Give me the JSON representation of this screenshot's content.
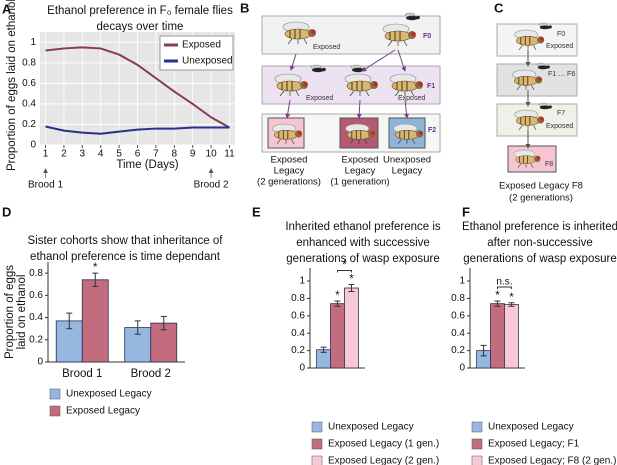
{
  "chart_data": [
    {
      "type": "line",
      "panel": "A",
      "title": [
        "Ethanol preference in F₀ female flies",
        "decays over time"
      ],
      "xlabel": "Time (Days)",
      "ylabel": [
        "Proportion of eggs laid on ethanol"
      ],
      "x": [
        1,
        2,
        3,
        4,
        5,
        6,
        7,
        8,
        9,
        10,
        11
      ],
      "series": [
        {
          "name": "Exposed",
          "color": "#8b3a55",
          "values": [
            0.92,
            0.94,
            0.95,
            0.94,
            0.88,
            0.78,
            0.65,
            0.52,
            0.4,
            0.27,
            0.17
          ]
        },
        {
          "name": "Unexposed",
          "color": "#2a2f8c",
          "values": [
            0.18,
            0.14,
            0.12,
            0.11,
            0.13,
            0.15,
            0.16,
            0.16,
            0.17,
            0.17,
            0.17
          ]
        }
      ],
      "xlim": [
        0.7,
        11.3
      ],
      "xticks": [
        1,
        2,
        3,
        4,
        5,
        6,
        7,
        8,
        9,
        10,
        11
      ],
      "ylim": [
        0,
        1.1
      ],
      "yticks": [
        0,
        0.2,
        0.4,
        0.6,
        0.8,
        1
      ],
      "grid": true,
      "legend": "upper right",
      "annotations": [
        {
          "text": "Brood 1",
          "x": 1
        },
        {
          "text": "Brood 2",
          "x": 10
        }
      ]
    },
    {
      "type": "bar",
      "panel": "D",
      "title": [
        "Sister cohorts show that inheritance of",
        "ethanol preference is time dependant"
      ],
      "ylabel": [
        "Proportion of eggs",
        "laid on ethanol"
      ],
      "categories": [
        "Brood 1",
        "Brood 2"
      ],
      "series": [
        {
          "name": "Unexposed Legacy",
          "color": "#95b7e0",
          "values": [
            0.37,
            0.31
          ],
          "errors": [
            0.07,
            0.06
          ],
          "significance": [
            null,
            null
          ]
        },
        {
          "name": "Exposed Legacy",
          "color": "#c26c7e",
          "values": [
            0.74,
            0.35
          ],
          "errors": [
            0.06,
            0.06
          ],
          "significance": [
            "*",
            null
          ]
        }
      ],
      "ylim": [
        0,
        0.9
      ],
      "yticks": [
        0,
        0.2,
        0.4,
        0.6,
        0.8
      ]
    },
    {
      "type": "bar",
      "panel": "E",
      "title": [
        "Inherited ethanol preference is",
        "enhanced with successive",
        "generations of wasp exposure"
      ],
      "categories": [
        null
      ],
      "series": [
        {
          "name": "Unexposed Legacy",
          "color": "#95b7e0",
          "values": [
            0.21
          ],
          "errors": [
            0.03
          ],
          "significance": [
            null
          ]
        },
        {
          "name": "Exposed Legacy (1 gen.)",
          "color": "#c26c7e",
          "values": [
            0.74
          ],
          "errors": [
            0.03
          ],
          "significance": [
            "*"
          ]
        },
        {
          "name": "Exposed Legacy (2 gen.)",
          "color": "#f8c8d3",
          "values": [
            0.92
          ],
          "errors": [
            0.04
          ],
          "significance": [
            "*"
          ]
        }
      ],
      "comparison_label": "*",
      "ylim": [
        0,
        1.15
      ],
      "yticks": [
        0,
        0.2,
        0.4,
        0.6,
        0.8,
        1
      ]
    },
    {
      "type": "bar",
      "panel": "F",
      "title": [
        "Ethanol preference is inherited",
        "after non-successive",
        "generations of wasp exposure"
      ],
      "categories": [
        null
      ],
      "series": [
        {
          "name": "Unexposed Legacy",
          "color": "#95b7e0",
          "values": [
            0.2
          ],
          "errors": [
            0.06
          ],
          "significance": [
            null
          ]
        },
        {
          "name": "Exposed Legacy; F1",
          "color": "#c26c7e",
          "values": [
            0.74
          ],
          "errors": [
            0.03
          ],
          "significance": [
            "*"
          ]
        },
        {
          "name": "Exposed Legacy; F8 (2 gen.)",
          "color": "#f8c8d3",
          "values": [
            0.73
          ],
          "errors": [
            0.02
          ],
          "significance": [
            "*"
          ]
        }
      ],
      "comparison_label": "n.s.",
      "ylim": [
        0,
        1.15
      ],
      "yticks": [
        0,
        0.2,
        0.4,
        0.6,
        0.8,
        1
      ]
    }
  ],
  "diagrams": [
    {
      "panel": "B",
      "generation_labels": [
        "F0",
        "F1",
        "F2"
      ],
      "treatments": [
        "Exposed",
        "Exposed",
        "Exposed"
      ],
      "captions": [
        [
          "Exposed",
          "Legacy",
          "(2 generations)"
        ],
        [
          "Exposed",
          "Legacy",
          "(1 generation)"
        ],
        [
          "Unexposed",
          "Legacy"
        ]
      ]
    },
    {
      "panel": "C",
      "generation_labels": [
        "F0",
        "F1 … F6",
        "F7",
        "F8"
      ],
      "treatments": [
        "Exposed",
        "Exposed"
      ],
      "caption": [
        "Exposed Legacy F8",
        "(2 generations)"
      ]
    }
  ]
}
